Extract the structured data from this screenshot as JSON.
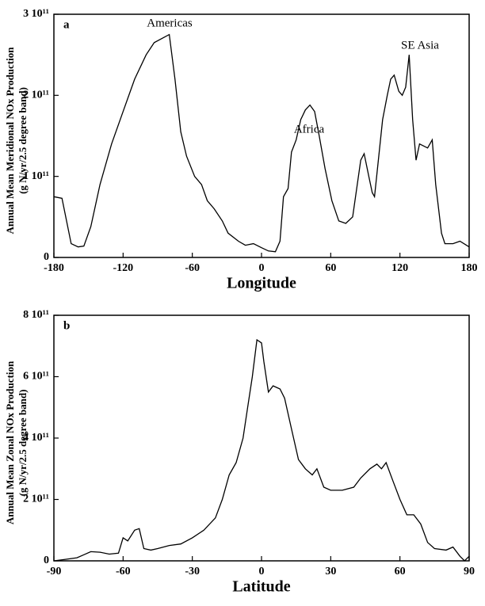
{
  "chart_data": [
    {
      "type": "line",
      "panel": "a",
      "xlabel": "Longitude",
      "ylabel": [
        "Annual Mean Meridional NOx Production",
        "(g N/yr/2.5 degree band)"
      ],
      "annotations": [
        "Americas",
        "Africa",
        "SE Asia"
      ],
      "color": "#000000",
      "xlim": [
        -180,
        180
      ],
      "xticks": [
        -180,
        -120,
        -60,
        0,
        60,
        120,
        180
      ],
      "ylim": [
        0,
        300000000000.0
      ],
      "yticks": [
        0,
        {
          "value": 100000000000.0,
          "label": "1 10¹¹"
        },
        {
          "value": 200000000000.0,
          "label": "2 10¹¹"
        },
        {
          "value": 300000000000.0,
          "label": "3 10¹¹"
        }
      ],
      "x": [
        -180,
        -173,
        -165,
        -159,
        -154,
        -148,
        -140,
        -130,
        -120,
        -110,
        -100,
        -93,
        -80,
        -75,
        -70,
        -65,
        -58,
        -52,
        -47,
        -41,
        -34,
        -29,
        -20,
        -14,
        -7,
        0,
        6,
        12,
        16,
        19,
        23,
        26,
        30,
        34,
        38,
        42,
        46,
        50,
        55,
        61,
        67,
        73,
        79,
        86,
        89,
        93,
        96,
        98,
        102,
        105,
        109,
        112,
        115,
        119,
        122,
        125,
        128,
        131,
        134,
        137,
        144,
        148,
        151,
        156,
        159,
        166,
        172,
        180
      ],
      "values": [
        75000000000.0,
        73000000000.0,
        17000000000.0,
        13000000000.0,
        14000000000.0,
        38000000000.0,
        90000000000.0,
        140000000000.0,
        180000000000.0,
        220000000000.0,
        250000000000.0,
        265000000000.0,
        275000000000.0,
        220000000000.0,
        155000000000.0,
        125000000000.0,
        100000000000.0,
        90000000000.0,
        70000000000.0,
        60000000000.0,
        45000000000.0,
        30000000000.0,
        20000000000.0,
        15000000000.0,
        17000000000.0,
        12000000000.0,
        8000000000.0,
        7000000000.0,
        20000000000.0,
        75000000000.0,
        85000000000.0,
        130000000000.0,
        145000000000.0,
        170000000000.0,
        182000000000.0,
        188000000000.0,
        180000000000.0,
        150000000000.0,
        110000000000.0,
        70000000000.0,
        45000000000.0,
        42000000000.0,
        50000000000.0,
        120000000000.0,
        128000000000.0,
        100000000000.0,
        80000000000.0,
        75000000000.0,
        130000000000.0,
        170000000000.0,
        200000000000.0,
        220000000000.0,
        225000000000.0,
        205000000000.0,
        200000000000.0,
        210000000000.0,
        250000000000.0,
        170000000000.0,
        120000000000.0,
        140000000000.0,
        135000000000.0,
        145000000000.0,
        90000000000.0,
        30000000000.0,
        17000000000.0,
        17000000000.0,
        20000000000.0,
        13000000000.0
      ]
    },
    {
      "type": "line",
      "panel": "b",
      "xlabel": "Latitude",
      "ylabel": [
        "Annual Mean Zonal NOx Production",
        "(g N/yr/2.5 degree band)"
      ],
      "color": "#000000",
      "xlim": [
        -90,
        90
      ],
      "xticks": [
        -90,
        -60,
        -30,
        0,
        30,
        60,
        90
      ],
      "ylim": [
        0,
        800000000000.0
      ],
      "yticks": [
        0,
        {
          "value": 200000000000.0,
          "label": "2 10¹¹"
        },
        {
          "value": 400000000000.0,
          "label": "4 10¹¹"
        },
        {
          "value": 600000000000.0,
          "label": "6 10¹¹"
        },
        {
          "value": 800000000000.0,
          "label": "8 10¹¹"
        }
      ],
      "x": [
        -90,
        -85,
        -80,
        -77,
        -74,
        -70,
        -66,
        -62,
        -60,
        -58,
        -55,
        -53,
        -51,
        -48,
        -45,
        -40,
        -35,
        -30,
        -25,
        -20,
        -17,
        -14,
        -11,
        -8,
        -6,
        -4,
        -2,
        0,
        1,
        3,
        5,
        8,
        10,
        13,
        16,
        19,
        22,
        24,
        27,
        30,
        35,
        40,
        43,
        47,
        50,
        52,
        54,
        57,
        60,
        63,
        66,
        69,
        72,
        75,
        80,
        83,
        86,
        88,
        90
      ],
      "values": [
        0,
        5000000000.0,
        10000000000.0,
        20000000000.0,
        30000000000.0,
        28000000000.0,
        22000000000.0,
        25000000000.0,
        75000000000.0,
        65000000000.0,
        100000000000.0,
        105000000000.0,
        40000000000.0,
        35000000000.0,
        40000000000.0,
        50000000000.0,
        55000000000.0,
        75000000000.0,
        100000000000.0,
        140000000000.0,
        200000000000.0,
        280000000000.0,
        320000000000.0,
        400000000000.0,
        500000000000.0,
        600000000000.0,
        720000000000.0,
        710000000000.0,
        650000000000.0,
        550000000000.0,
        570000000000.0,
        560000000000.0,
        530000000000.0,
        430000000000.0,
        330000000000.0,
        300000000000.0,
        280000000000.0,
        300000000000.0,
        240000000000.0,
        230000000000.0,
        230000000000.0,
        240000000000.0,
        270000000000.0,
        300000000000.0,
        315000000000.0,
        300000000000.0,
        320000000000.0,
        260000000000.0,
        200000000000.0,
        150000000000.0,
        150000000000.0,
        120000000000.0,
        60000000000.0,
        40000000000.0,
        35000000000.0,
        45000000000.0,
        15000000000.0,
        0,
        15000000000.0
      ]
    }
  ]
}
